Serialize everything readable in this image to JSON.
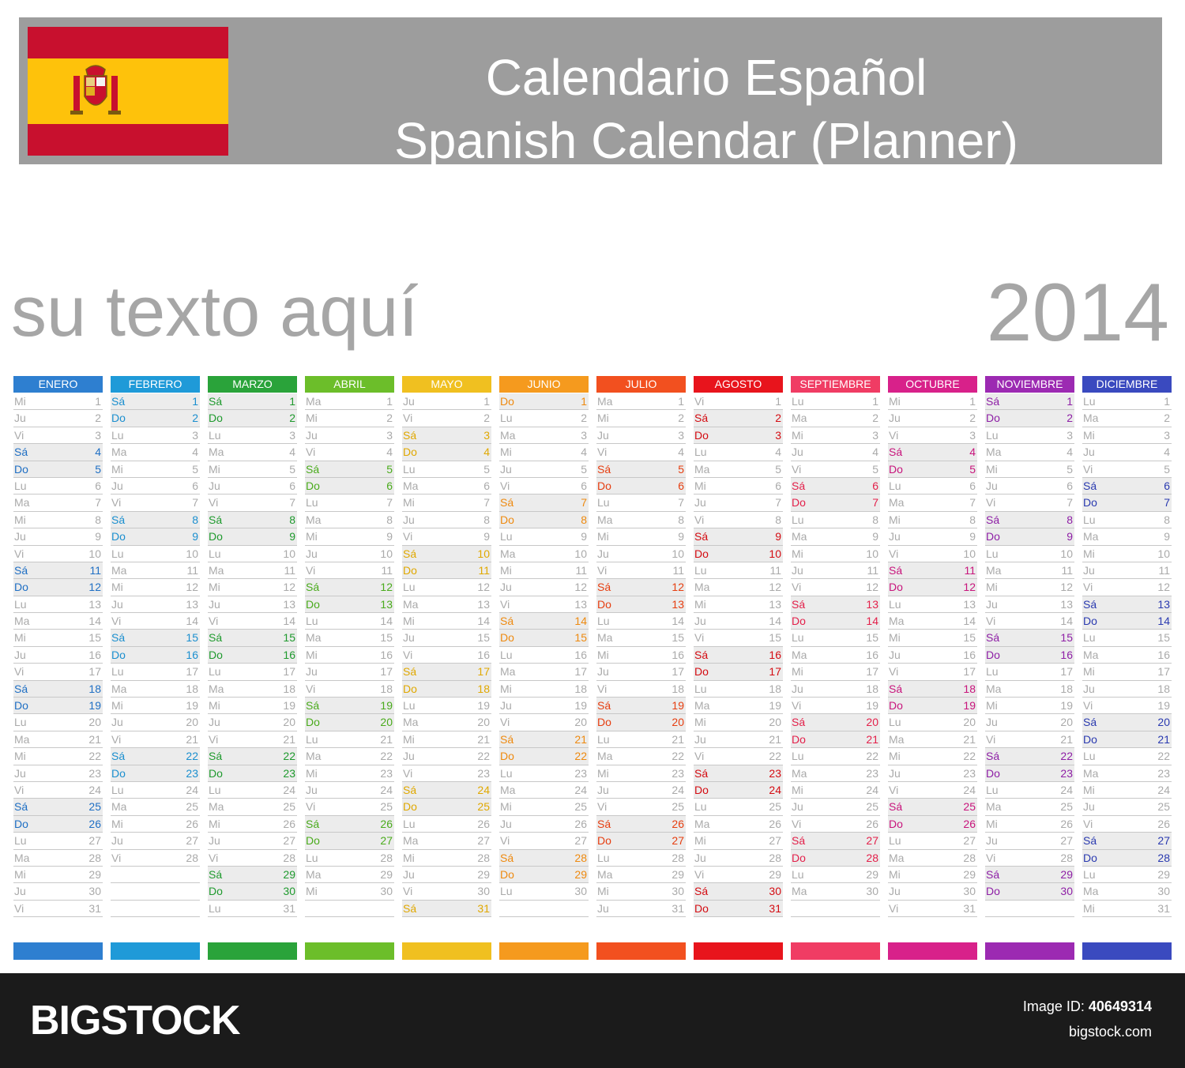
{
  "header": {
    "title_line1": "Calendario Español",
    "title_line2": "Spanish Calendar (Planner)",
    "flag": "spain-flag"
  },
  "subtitle": "su texto aquí",
  "year": "2014",
  "months": [
    {
      "name": "ENERO",
      "color": "#2e7fd0",
      "start": 2,
      "days": 31,
      "weekend_color": "#1f6fc4"
    },
    {
      "name": "FEBRERO",
      "color": "#1f9ad8",
      "start": 5,
      "days": 28,
      "weekend_color": "#1b8fcf"
    },
    {
      "name": "MARZO",
      "color": "#2aa33a",
      "start": 5,
      "days": 31,
      "weekend_color": "#1f9a2e"
    },
    {
      "name": "ABRIL",
      "color": "#6cbe2a",
      "start": 1,
      "days": 30,
      "weekend_color": "#4aab1c"
    },
    {
      "name": "MAYO",
      "color": "#f0c020",
      "start": 3,
      "days": 31,
      "weekend_color": "#e0a800"
    },
    {
      "name": "JUNIO",
      "color": "#f59a1e",
      "start": 6,
      "days": 30,
      "weekend_color": "#ee8a10"
    },
    {
      "name": "JULIO",
      "color": "#f2501f",
      "start": 1,
      "days": 31,
      "weekend_color": "#e63e10"
    },
    {
      "name": "AGOSTO",
      "color": "#e8141c",
      "start": 4,
      "days": 31,
      "weekend_color": "#d40c12"
    },
    {
      "name": "SEPTIEMBRE",
      "color": "#f03c64",
      "start": 0,
      "days": 30,
      "weekend_color": "#e3204a"
    },
    {
      "name": "OCTUBRE",
      "color": "#d8218a",
      "start": 2,
      "days": 31,
      "weekend_color": "#c8157c"
    },
    {
      "name": "NOVIEMBRE",
      "color": "#9c2ab2",
      "start": 5,
      "days": 30,
      "weekend_color": "#8e1fa6"
    },
    {
      "name": "DICIEMBRE",
      "color": "#3a4abf",
      "start": 0,
      "days": 31,
      "weekend_color": "#2a3ab0"
    }
  ],
  "weekday_abbr": [
    "Lu",
    "Ma",
    "Mi",
    "Ju",
    "Vi",
    "Sá",
    "Do"
  ],
  "footer": {
    "brand": "BIGSTOCK",
    "image_id_label": "Image ID:",
    "image_id": "40649314",
    "site": "bigstock.com"
  }
}
